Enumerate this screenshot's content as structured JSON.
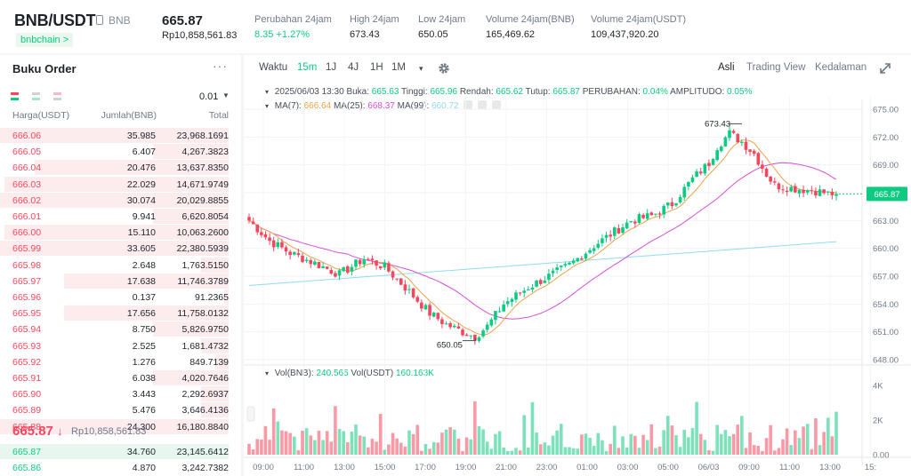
{
  "header": {
    "pair": "BNB/USDT",
    "base_asset": "BNB",
    "chain_tag": "bnbchain >",
    "last_price": "665.87",
    "last_price_idr": "Rp10,858,561.83",
    "stats": [
      {
        "label": "Perubahan 24jam",
        "value": "8.35 +1.27%",
        "positive": true
      },
      {
        "label": "High 24jam",
        "value": "673.43"
      },
      {
        "label": "Low 24jam",
        "value": "650.05"
      },
      {
        "label": "Volume 24jam(BNB)",
        "value": "165,469.62"
      },
      {
        "label": "Volume 24jam(USDT)",
        "value": "109,437,920.20"
      }
    ]
  },
  "orderbook": {
    "title": "Buku Order",
    "menu": "···",
    "precision": "0.01",
    "col_price": "Harga(USDT)",
    "col_amount": "Jumlah(BNB)",
    "col_total": "Total",
    "asks": [
      {
        "price": "666.06",
        "amount": "35.985",
        "total": "23,968.1691",
        "depth": 1.0
      },
      {
        "price": "666.05",
        "amount": "6.407",
        "total": "4,267.3823",
        "depth": 0.33
      },
      {
        "price": "666.04",
        "amount": "20.476",
        "total": "13,637.8350",
        "depth": 0.85
      },
      {
        "price": "666.03",
        "amount": "22.029",
        "total": "14,671.9749",
        "depth": 0.98
      },
      {
        "price": "666.02",
        "amount": "30.074",
        "total": "20,029.8855",
        "depth": 1.0
      },
      {
        "price": "666.01",
        "amount": "9.941",
        "total": "6,620.8054",
        "depth": 0.33
      },
      {
        "price": "666.00",
        "amount": "15.110",
        "total": "10,063.2600",
        "depth": 0.98
      },
      {
        "price": "665.99",
        "amount": "33.605",
        "total": "22,380.5939",
        "depth": 1.0
      },
      {
        "price": "665.98",
        "amount": "2.648",
        "total": "1,763.5150",
        "depth": 0.12
      },
      {
        "price": "665.97",
        "amount": "17.638",
        "total": "11,746.3789",
        "depth": 0.72
      },
      {
        "price": "665.96",
        "amount": "0.137",
        "total": "91.2365",
        "depth": 0.02
      },
      {
        "price": "665.95",
        "amount": "17.656",
        "total": "11,758.0132",
        "depth": 0.72
      },
      {
        "price": "665.94",
        "amount": "8.750",
        "total": "5,826.9750",
        "depth": 0.33
      },
      {
        "price": "665.93",
        "amount": "2.525",
        "total": "1,681.4732",
        "depth": 0.12
      },
      {
        "price": "665.92",
        "amount": "1.276",
        "total": "849.7139",
        "depth": 0.06
      },
      {
        "price": "665.91",
        "amount": "6.038",
        "total": "4,020.7646",
        "depth": 0.33
      },
      {
        "price": "665.90",
        "amount": "3.443",
        "total": "2,292.6937",
        "depth": 0.12
      },
      {
        "price": "665.89",
        "amount": "5.476",
        "total": "3,646.4136",
        "depth": 0.12
      },
      {
        "price": "665.88",
        "amount": "24.300",
        "total": "16,180.8840",
        "depth": 1.0
      }
    ],
    "mid_price": "665.87",
    "mid_arrow": "↓",
    "mid_price_idr": "Rp10,858,561.83",
    "bids": [
      {
        "price": "665.87",
        "amount": "34.760",
        "total": "23,145.6412",
        "depth": 1.0
      },
      {
        "price": "665.86",
        "amount": "4.870",
        "total": "3,242.7382",
        "depth": 0.0
      }
    ]
  },
  "toolbar": {
    "time_label": "Waktu",
    "intervals": [
      "15m",
      "1J",
      "4J",
      "1H",
      "1M"
    ],
    "active_interval": "15m",
    "more": "▾",
    "views": [
      "Asli",
      "Trading View",
      "Kedalaman"
    ],
    "active_view": "Asli"
  },
  "legend": {
    "arrow": "▾",
    "datetime": "2025/06/03 13:30",
    "open_label": "Buka:",
    "open": "665.63",
    "high_label": "Tinggi:",
    "high": "665.96",
    "low_label": "Rendah:",
    "low": "665.62",
    "close_label": "Tutup:",
    "close": "665.87",
    "change_label": "PERUBAHAN:",
    "change": "0.04%",
    "amp_label": "AMPLITUDO:",
    "amp": "0.05%",
    "ma7_label": "MA(7):",
    "ma7": "666.64",
    "ma25_label": "MA(25):",
    "ma25": "668.37",
    "ma99_label": "MA(99):",
    "ma99": "660.72"
  },
  "volume_legend": {
    "vol_base_label": "Vol(BNB):",
    "vol_base": "240.565",
    "vol_quote_label": "Vol(USDT)",
    "vol_quote": "160.163K"
  },
  "colors": {
    "up": "#0ecb81",
    "down": "#f6465d",
    "ma7": "#f0a24b",
    "ma25": "#d54ed8",
    "ma99": "#8fdcef",
    "ask_depth": "#fdecee",
    "bid_depth": "#e7f7ef"
  },
  "chart_data": {
    "type": "candlestick",
    "interval": "15m",
    "price_ticks": [
      "675.00",
      "672.00",
      "669.00",
      "666.00",
      "663.00",
      "660.00",
      "657.00",
      "654.00",
      "651.00",
      "648.00"
    ],
    "price_range": [
      648,
      675
    ],
    "volume_ticks": [
      "4K",
      "2K",
      "0.00"
    ],
    "volume_range": [
      0,
      4000
    ],
    "time_ticks": [
      "09:00",
      "11:00",
      "13:00",
      "15:00",
      "17:00",
      "19:00",
      "21:00",
      "23:00",
      "01:00",
      "03:00",
      "05:00",
      "06/03",
      "09:00",
      "11:00",
      "13:00",
      "15:"
    ],
    "last_price_marker": "665.87",
    "annotations": [
      {
        "label": "673.43",
        "price": 673.43,
        "candle": 117
      },
      {
        "label": "650.05",
        "price": 650.05,
        "candle": 55
      }
    ],
    "waypoints": [
      [
        0,
        663.0
      ],
      [
        5,
        660.8
      ],
      [
        10,
        659.5
      ],
      [
        16,
        658.4
      ],
      [
        22,
        657.2
      ],
      [
        28,
        658.9
      ],
      [
        33,
        658.0
      ],
      [
        38,
        655.8
      ],
      [
        44,
        653.0
      ],
      [
        48,
        651.8
      ],
      [
        52,
        651.0
      ],
      [
        55,
        650.5
      ],
      [
        58,
        651.6
      ],
      [
        62,
        654.0
      ],
      [
        68,
        655.8
      ],
      [
        73,
        657.0
      ],
      [
        78,
        658.2
      ],
      [
        84,
        660.3
      ],
      [
        88,
        661.5
      ],
      [
        93,
        663.0
      ],
      [
        98,
        663.5
      ],
      [
        103,
        664.8
      ],
      [
        108,
        667.5
      ],
      [
        112,
        669.2
      ],
      [
        114,
        671.0
      ],
      [
        117,
        672.4
      ],
      [
        120,
        671.5
      ],
      [
        123,
        670.2
      ],
      [
        126,
        668.0
      ],
      [
        128,
        666.8
      ],
      [
        132,
        666.5
      ],
      [
        138,
        666.2
      ],
      [
        141,
        665.9
      ],
      [
        143,
        665.87
      ]
    ],
    "ma7_at_end": 666.64,
    "ma25_at_end": 668.37,
    "ma99_at_end": 660.72
  }
}
